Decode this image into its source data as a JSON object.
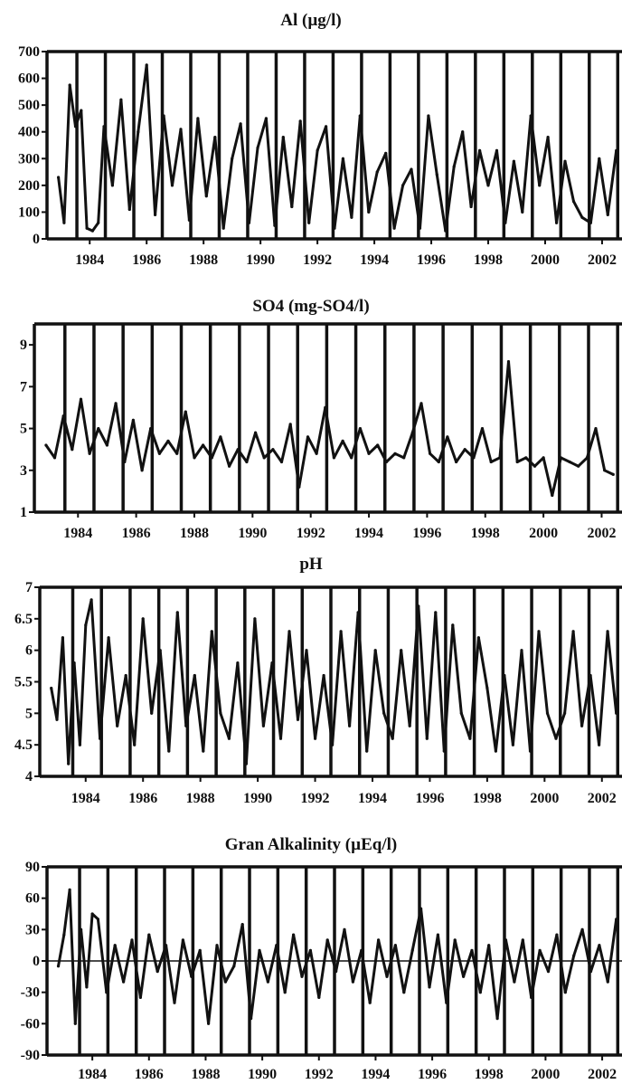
{
  "chart_data": [
    {
      "type": "line",
      "title": "Al (µg/l)",
      "ylim": [
        0,
        700
      ],
      "yticks": [
        "0",
        "100",
        "200",
        "300",
        "400",
        "500",
        "600",
        "700"
      ],
      "xticks": [
        "1984",
        "1986",
        "1988",
        "1990",
        "1992",
        "1994",
        "1996",
        "1998",
        "2000",
        "2002"
      ],
      "xlim": [
        1983.0,
        2003.2
      ],
      "series": [
        {
          "x": [
            1983.4,
            1983.6,
            1983.8,
            1984.0,
            1984.2,
            1984.4,
            1984.6,
            1984.8,
            1985.0,
            1985.3,
            1985.6,
            1985.9,
            1986.2,
            1986.5,
            1986.8,
            1987.1,
            1987.4,
            1987.7,
            1988.0,
            1988.3,
            1988.6,
            1988.9,
            1989.2,
            1989.5,
            1989.8,
            1990.1,
            1990.4,
            1990.7,
            1991.0,
            1991.3,
            1991.6,
            1991.9,
            1992.2,
            1992.5,
            1992.8,
            1993.1,
            1993.4,
            1993.7,
            1994.0,
            1994.3,
            1994.6,
            1994.9,
            1995.2,
            1995.5,
            1995.8,
            1996.1,
            1996.4,
            1996.7,
            1997.0,
            1997.3,
            1997.6,
            1997.9,
            1998.2,
            1998.5,
            1998.8,
            1999.1,
            1999.4,
            1999.7,
            2000.0,
            2000.3,
            2000.6,
            2000.9,
            2001.2,
            2001.5,
            2001.8,
            2002.1,
            2002.4,
            2002.7,
            2003.0
          ],
          "values": [
            230,
            60,
            575,
            420,
            480,
            40,
            30,
            60,
            420,
            200,
            520,
            110,
            400,
            650,
            90,
            460,
            200,
            410,
            70,
            450,
            160,
            380,
            40,
            300,
            430,
            60,
            340,
            450,
            50,
            380,
            120,
            440,
            60,
            330,
            420,
            40,
            300,
            80,
            460,
            100,
            250,
            320,
            40,
            200,
            260,
            40,
            460,
            240,
            30,
            270,
            400,
            120,
            330,
            200,
            330,
            60,
            290,
            100,
            460,
            200,
            380,
            60,
            290,
            140,
            80,
            60,
            300,
            90,
            330
          ]
        }
      ]
    },
    {
      "type": "line",
      "title": "SO4 (mg-SO4/l)",
      "ylim": [
        1,
        10
      ],
      "yticks": [
        "1",
        "3",
        "5",
        "7",
        "9"
      ],
      "xticks": [
        "1984",
        "1986",
        "1988",
        "1990",
        "1992",
        "1994",
        "1996",
        "1998",
        "2000",
        "2002"
      ],
      "xlim": [
        1983.0,
        2003.2
      ],
      "series": [
        {
          "x": [
            1983.4,
            1983.7,
            1984.0,
            1984.3,
            1984.6,
            1984.9,
            1985.2,
            1985.5,
            1985.8,
            1986.1,
            1986.4,
            1986.7,
            1987.0,
            1987.3,
            1987.6,
            1987.9,
            1988.2,
            1988.5,
            1988.8,
            1989.1,
            1989.4,
            1989.7,
            1990.0,
            1990.3,
            1990.6,
            1990.9,
            1991.2,
            1991.5,
            1991.8,
            1992.1,
            1992.4,
            1992.7,
            1993.0,
            1993.3,
            1993.6,
            1993.9,
            1994.2,
            1994.5,
            1994.8,
            1995.1,
            1995.4,
            1995.7,
            1996.0,
            1996.3,
            1996.6,
            1996.9,
            1997.2,
            1997.5,
            1997.8,
            1998.1,
            1998.4,
            1998.7,
            1999.0,
            1999.3,
            1999.6,
            1999.9,
            2000.2,
            2000.5,
            2000.8,
            2001.1,
            2001.4,
            2001.7,
            2002.0,
            2002.3,
            2002.6,
            2002.9
          ],
          "values": [
            4.2,
            3.6,
            5.6,
            4.0,
            6.4,
            3.8,
            5.0,
            4.2,
            6.2,
            3.4,
            5.4,
            3.0,
            5.0,
            3.8,
            4.4,
            3.8,
            5.8,
            3.6,
            4.2,
            3.6,
            4.6,
            3.2,
            4.0,
            3.4,
            4.8,
            3.6,
            4.0,
            3.4,
            5.2,
            2.2,
            4.6,
            3.8,
            6.0,
            3.6,
            4.4,
            3.6,
            5.0,
            3.8,
            4.2,
            3.4,
            3.8,
            3.6,
            4.8,
            6.2,
            3.8,
            3.4,
            4.6,
            3.4,
            4.0,
            3.6,
            5.0,
            3.4,
            3.6,
            8.2,
            3.4,
            3.6,
            3.2,
            3.6,
            1.8,
            3.6,
            3.4,
            3.2,
            3.6,
            5.0,
            3.0,
            2.8
          ]
        }
      ]
    },
    {
      "type": "line",
      "title": "pH",
      "ylim": [
        4,
        7
      ],
      "yticks": [
        "4",
        "4.5",
        "5",
        "5.5",
        "6",
        "6.5",
        "7"
      ],
      "xticks": [
        "1984",
        "1986",
        "1988",
        "1990",
        "1992",
        "1994",
        "1996",
        "1998",
        "2000",
        "2002"
      ],
      "xlim": [
        1982.9,
        2003.2
      ],
      "series": [
        {
          "x": [
            1983.3,
            1983.5,
            1983.7,
            1983.9,
            1984.1,
            1984.3,
            1984.5,
            1984.7,
            1985.0,
            1985.3,
            1985.6,
            1985.9,
            1986.2,
            1986.5,
            1986.8,
            1987.1,
            1987.4,
            1987.7,
            1988.0,
            1988.3,
            1988.6,
            1988.9,
            1989.2,
            1989.5,
            1989.8,
            1990.1,
            1990.4,
            1990.7,
            1991.0,
            1991.3,
            1991.6,
            1991.9,
            1992.2,
            1992.5,
            1992.8,
            1993.1,
            1993.4,
            1993.7,
            1994.0,
            1994.3,
            1994.6,
            1994.9,
            1995.2,
            1995.5,
            1995.8,
            1996.1,
            1996.4,
            1996.7,
            1997.0,
            1997.3,
            1997.6,
            1997.9,
            1998.2,
            1998.5,
            1998.8,
            1999.1,
            1999.4,
            1999.7,
            2000.0,
            2000.3,
            2000.6,
            2000.9,
            2001.2,
            2001.5,
            2001.8,
            2002.1,
            2002.4,
            2002.7,
            2003.0
          ],
          "values": [
            5.4,
            4.9,
            6.2,
            4.2,
            5.8,
            4.5,
            6.4,
            6.8,
            4.6,
            6.2,
            4.8,
            5.6,
            4.5,
            6.5,
            5.0,
            6.0,
            4.4,
            6.6,
            4.8,
            5.6,
            4.4,
            6.3,
            5.0,
            4.6,
            5.8,
            4.2,
            6.5,
            4.8,
            5.8,
            4.6,
            6.3,
            4.9,
            6.0,
            4.6,
            5.6,
            4.5,
            6.3,
            4.8,
            6.6,
            4.4,
            6.0,
            5.0,
            4.6,
            6.0,
            4.8,
            6.7,
            4.6,
            6.6,
            4.4,
            6.4,
            5.0,
            4.6,
            6.2,
            5.4,
            4.4,
            5.6,
            4.5,
            6.0,
            4.4,
            6.3,
            5.0,
            4.6,
            5.0,
            6.3,
            4.8,
            5.6,
            4.5,
            6.3,
            5.0
          ]
        }
      ]
    },
    {
      "type": "line",
      "title": "Gran Alkalinity (µEq/l)",
      "ylim": [
        -90,
        90
      ],
      "yticks": [
        "-90",
        "-60",
        "-30",
        "0",
        "30",
        "60",
        "90"
      ],
      "xticks": [
        "1984",
        "1986",
        "1988",
        "1990",
        "1992",
        "1994",
        "1996",
        "1998",
        "2000",
        "2002"
      ],
      "xlim": [
        1982.9,
        2003.2
      ],
      "series": [
        {
          "x": [
            1983.3,
            1983.5,
            1983.7,
            1983.9,
            1984.1,
            1984.3,
            1984.5,
            1984.7,
            1985.0,
            1985.3,
            1985.6,
            1985.9,
            1986.2,
            1986.5,
            1986.8,
            1987.1,
            1987.4,
            1987.7,
            1988.0,
            1988.3,
            1988.6,
            1988.9,
            1989.2,
            1989.5,
            1989.8,
            1990.1,
            1990.4,
            1990.7,
            1991.0,
            1991.3,
            1991.6,
            1991.9,
            1992.2,
            1992.5,
            1992.8,
            1993.1,
            1993.4,
            1993.7,
            1994.0,
            1994.3,
            1994.6,
            1994.9,
            1995.2,
            1995.5,
            1995.8,
            1996.1,
            1996.4,
            1996.7,
            1997.0,
            1997.3,
            1997.6,
            1997.9,
            1998.2,
            1998.5,
            1998.8,
            1999.1,
            1999.4,
            1999.7,
            2000.0,
            2000.3,
            2000.6,
            2000.9,
            2001.2,
            2001.5,
            2001.8,
            2002.1,
            2002.4,
            2002.7,
            2003.0
          ],
          "values": [
            -5,
            25,
            68,
            -60,
            30,
            -25,
            45,
            40,
            -30,
            15,
            -20,
            20,
            -35,
            25,
            -10,
            15,
            -40,
            20,
            -15,
            10,
            -60,
            15,
            -20,
            -5,
            35,
            -55,
            10,
            -20,
            15,
            -30,
            25,
            -15,
            10,
            -35,
            20,
            -10,
            30,
            -20,
            10,
            -40,
            20,
            -15,
            15,
            -30,
            10,
            50,
            -25,
            25,
            -40,
            20,
            -15,
            10,
            -30,
            15,
            -55,
            20,
            -20,
            20,
            -35,
            10,
            -10,
            25,
            -30,
            5,
            30,
            -10,
            15,
            -20,
            40
          ]
        }
      ]
    }
  ]
}
